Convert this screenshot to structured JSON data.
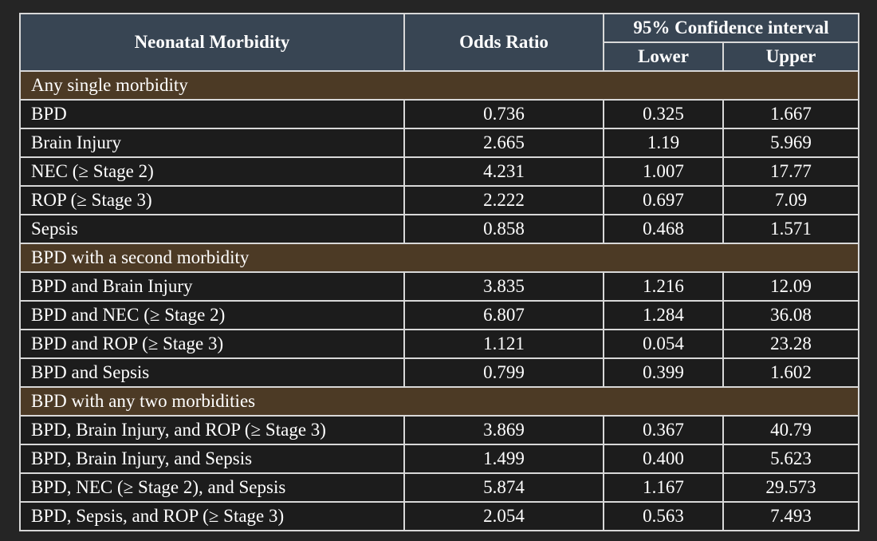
{
  "header": {
    "morbidity": "Neonatal Morbidity",
    "odds_ratio": "Odds Ratio",
    "ci": "95% Confidence interval",
    "lower": "Lower",
    "upper": "Upper"
  },
  "sections": [
    {
      "title": "Any single morbidity",
      "rows": [
        {
          "label": "BPD",
          "or": "0.736",
          "lower": "0.325",
          "upper": "1.667"
        },
        {
          "label": "Brain Injury",
          "or": "2.665",
          "lower": "1.19",
          "upper": "5.969"
        },
        {
          "label": "NEC (≥ Stage 2)",
          "or": "4.231",
          "lower": "1.007",
          "upper": "17.77"
        },
        {
          "label": "ROP (≥ Stage 3)",
          "or": "2.222",
          "lower": "0.697",
          "upper": "7.09"
        },
        {
          "label": "Sepsis",
          "or": "0.858",
          "lower": "0.468",
          "upper": "1.571"
        }
      ]
    },
    {
      "title": "BPD with a second morbidity",
      "rows": [
        {
          "label": "BPD and Brain Injury",
          "or": "3.835",
          "lower": "1.216",
          "upper": "12.09"
        },
        {
          "label": "BPD and NEC (≥ Stage 2)",
          "or": "6.807",
          "lower": "1.284",
          "upper": "36.08"
        },
        {
          "label": "BPD and ROP (≥ Stage 3)",
          "or": "1.121",
          "lower": "0.054",
          "upper": "23.28"
        },
        {
          "label": "BPD and Sepsis",
          "or": "0.799",
          "lower": "0.399",
          "upper": "1.602"
        }
      ]
    },
    {
      "title": "BPD with any two morbidities",
      "rows": [
        {
          "label": "BPD, Brain Injury, and ROP (≥ Stage 3)",
          "or": "3.869",
          "lower": "0.367",
          "upper": "40.79"
        },
        {
          "label": "BPD, Brain Injury, and Sepsis",
          "or": "1.499",
          "lower": "0.400",
          "upper": "5.623"
        },
        {
          "label": "BPD, NEC (≥ Stage 2), and Sepsis",
          "or": "5.874",
          "lower": "1.167",
          "upper": "29.573"
        },
        {
          "label": "BPD, Sepsis, and ROP (≥ Stage 3)",
          "or": "2.054",
          "lower": "0.563",
          "upper": "7.493"
        }
      ]
    }
  ],
  "colors": {
    "header_bg": "#384553",
    "section_bg": "#4c3a25",
    "row_bg": "#1c1c1c",
    "border": "#d8d8d8"
  }
}
